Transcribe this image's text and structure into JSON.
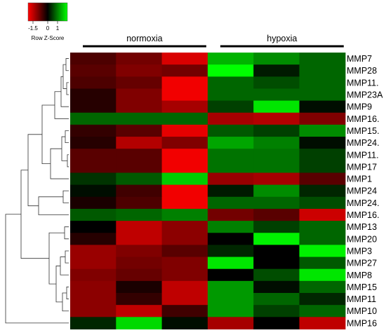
{
  "chart_data": {
    "type": "heatmap",
    "legend": {
      "title": "Row Z-Score",
      "ticks": [
        "-1.5",
        "0",
        "1"
      ],
      "tick_values": [
        -1.5,
        0,
        1
      ],
      "range": [
        -2,
        2
      ],
      "colors": {
        "low": "#ff0000",
        "mid": "#000000",
        "high": "#00ff00"
      }
    },
    "groups": [
      {
        "name": "normoxia",
        "columns": [
          0,
          1,
          2
        ]
      },
      {
        "name": "hypoxia",
        "columns": [
          3,
          4,
          5
        ]
      }
    ],
    "rows": [
      {
        "label": "MMP7",
        "values": [
          -0.6,
          -0.9,
          -1.7,
          1.4,
          1.1,
          0.8
        ]
      },
      {
        "label": "MMP28",
        "values": [
          -0.7,
          -1.0,
          -0.9,
          2.0,
          0.2,
          0.8
        ]
      },
      {
        "label": "MMP11.",
        "values": [
          -0.6,
          -0.8,
          -1.9,
          0.8,
          0.6,
          0.8
        ]
      },
      {
        "label": "MMP23A",
        "values": [
          -0.3,
          -1.0,
          -1.9,
          0.8,
          0.8,
          0.8
        ]
      },
      {
        "label": "MMP9",
        "values": [
          -0.3,
          -1.0,
          -1.3,
          0.5,
          1.8,
          0.1
        ]
      },
      {
        "label": "MMP16.",
        "values": [
          0.8,
          0.8,
          0.8,
          -1.3,
          -1.4,
          -1.0
        ]
      },
      {
        "label": "MMP15.",
        "values": [
          -0.4,
          -0.7,
          -1.8,
          0.7,
          0.5,
          1.1
        ]
      },
      {
        "label": "MMP24.",
        "values": [
          -0.3,
          -1.4,
          -1.0,
          1.3,
          1.0,
          0.1
        ]
      },
      {
        "label": "MMP11.",
        "values": [
          -0.7,
          -0.7,
          -1.9,
          0.9,
          0.9,
          0.5
        ]
      },
      {
        "label": "MMP17",
        "values": [
          -0.7,
          -0.7,
          -1.9,
          0.9,
          0.9,
          0.5
        ]
      },
      {
        "label": "MMP1",
        "values": [
          0.4,
          0.7,
          1.6,
          -1.2,
          -1.3,
          -0.7
        ]
      },
      {
        "label": "MMP24",
        "values": [
          0.1,
          -0.5,
          -1.9,
          0.2,
          1.1,
          0.3
        ]
      },
      {
        "label": "MMP24.",
        "values": [
          -0.2,
          -0.6,
          -1.9,
          0.8,
          0.8,
          0.6
        ]
      },
      {
        "label": "MMP16.",
        "values": [
          0.7,
          0.8,
          1.0,
          -0.9,
          -0.7,
          -1.6
        ]
      },
      {
        "label": "MMP13",
        "values": [
          0.0,
          -1.5,
          -1.1,
          1.0,
          0.5,
          0.8
        ]
      },
      {
        "label": "MMP20",
        "values": [
          -0.3,
          -1.5,
          -1.1,
          0.0,
          1.9,
          0.8
        ]
      },
      {
        "label": "MMP3",
        "values": [
          -1.2,
          -1.0,
          -0.7,
          0.3,
          0.0,
          1.9
        ]
      },
      {
        "label": "MMP27",
        "values": [
          -1.2,
          -0.9,
          -1.0,
          1.8,
          0.0,
          0.7
        ]
      },
      {
        "label": "MMP8",
        "values": [
          -1.0,
          -0.8,
          -1.0,
          0.0,
          0.6,
          1.8
        ]
      },
      {
        "label": "MMP15",
        "values": [
          -1.1,
          -0.2,
          -1.5,
          1.2,
          0.1,
          0.8
        ]
      },
      {
        "label": "MMP11",
        "values": [
          -1.1,
          -0.4,
          -1.5,
          1.2,
          0.8,
          0.3
        ]
      },
      {
        "label": "MMP10",
        "values": [
          -1.1,
          -1.5,
          -0.5,
          1.2,
          0.5,
          0.8
        ]
      },
      {
        "label": "MMP16",
        "values": [
          0.3,
          1.7,
          0.1,
          -1.3,
          0.0,
          -1.5
        ]
      }
    ],
    "dendrogram": "row clustering",
    "grid": false
  }
}
